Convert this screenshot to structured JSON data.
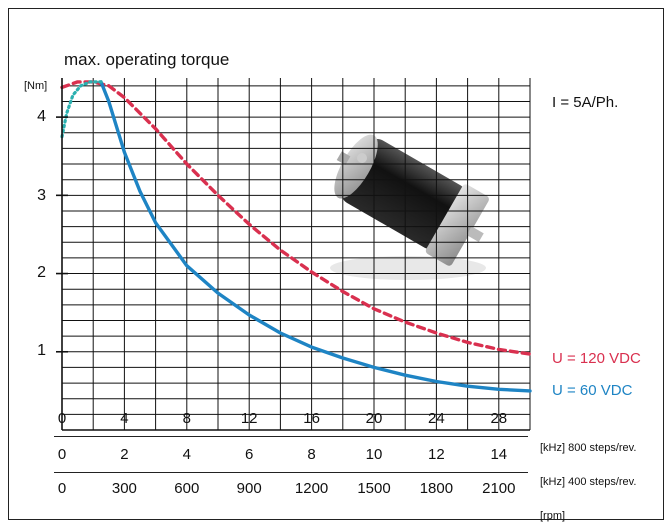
{
  "chart_data": {
    "type": "line",
    "title": "max. operating torque",
    "y_unit_label": "[Nm]",
    "ylim": [
      0,
      4.5
    ],
    "yticks": [
      "1",
      "2",
      "3",
      "4"
    ],
    "annotation": "I = 5A/Ph.",
    "grid": true,
    "x_axes": [
      {
        "unit_label": "[kHz] 800 steps/rev.",
        "ticks": [
          "0",
          "4",
          "8",
          "12",
          "16",
          "20",
          "24",
          "28"
        ],
        "range": [
          0,
          30
        ]
      },
      {
        "unit_label": "[kHz] 400 steps/rev.",
        "ticks": [
          "0",
          "2",
          "4",
          "6",
          "8",
          "10",
          "12",
          "14"
        ],
        "range": [
          0,
          15
        ]
      },
      {
        "unit_label": "[rpm]",
        "ticks": [
          "0",
          "300",
          "600",
          "900",
          "1200",
          "1500",
          "1800",
          "2100"
        ],
        "range": [
          0,
          2250
        ]
      }
    ],
    "series": [
      {
        "name": "U = 120 VDC",
        "color": "#d9304f",
        "style": "dashed",
        "x": [
          0,
          1,
          2,
          3,
          4,
          6,
          8,
          10,
          12,
          14,
          16,
          18,
          20,
          22,
          24,
          26,
          28,
          30
        ],
        "y": [
          4.38,
          4.45,
          4.45,
          4.4,
          4.25,
          3.85,
          3.4,
          3.0,
          2.63,
          2.3,
          2.02,
          1.77,
          1.55,
          1.38,
          1.24,
          1.12,
          1.03,
          0.97
        ]
      },
      {
        "name": "U = 60 VDC",
        "color": "#1e84c4",
        "style": "solid",
        "x": [
          2.5,
          3,
          4,
          5,
          6,
          8,
          10,
          12,
          14,
          16,
          18,
          20,
          22,
          24,
          26,
          28,
          30
        ],
        "y": [
          4.45,
          4.2,
          3.55,
          3.05,
          2.65,
          2.1,
          1.75,
          1.47,
          1.24,
          1.06,
          0.92,
          0.8,
          0.7,
          0.62,
          0.56,
          0.52,
          0.5
        ]
      },
      {
        "name": "",
        "color": "#2bb0b0",
        "style": "dotted",
        "x": [
          0,
          0.3,
          0.7,
          1.2,
          1.8,
          2.5
        ],
        "y": [
          3.75,
          4.05,
          4.28,
          4.4,
          4.45,
          4.45
        ]
      }
    ]
  }
}
